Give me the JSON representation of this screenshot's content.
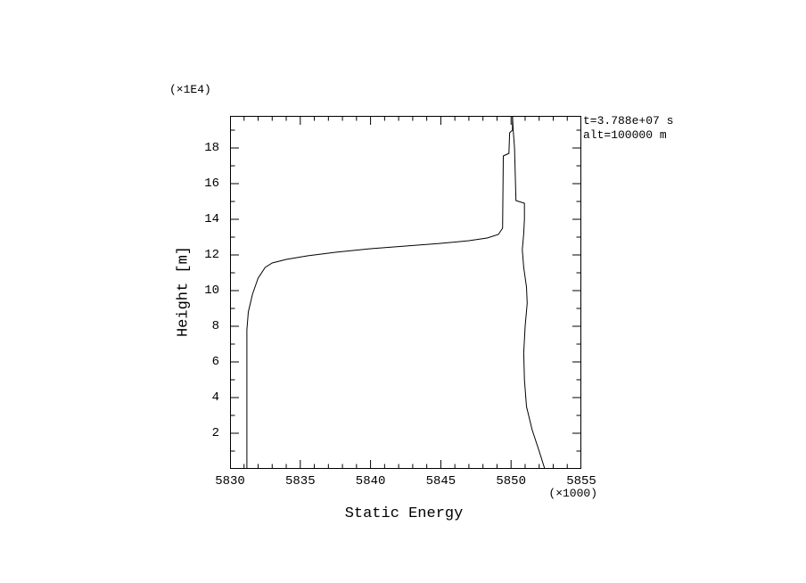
{
  "page": {
    "background": "#ffffff",
    "foreground": "#000000"
  },
  "chart_data": {
    "type": "line",
    "title": "",
    "xlabel": "Static Energy",
    "ylabel": "Height [m]",
    "x_scale_label": "(×1000)",
    "y_scale_label": "(×1E4)",
    "xlim": [
      5830,
      5855
    ],
    "ylim": [
      0,
      19.8
    ],
    "x_major_ticks": [
      5830,
      5835,
      5840,
      5845,
      5850,
      5855
    ],
    "x_minor_step": 1,
    "y_major_ticks": [
      2,
      4,
      6,
      8,
      10,
      12,
      14,
      16,
      18
    ],
    "y_minor_step": 1,
    "grid": false,
    "legend": "none",
    "line_color": "#000000",
    "annotations": [
      "t=3.788e+07 s",
      "alt=100000 m"
    ],
    "series": [
      {
        "name": "profile-left",
        "points": [
          [
            5831.2,
            0.0
          ],
          [
            5831.2,
            7.8
          ],
          [
            5831.3,
            8.8
          ],
          [
            5831.6,
            9.8
          ],
          [
            5832.0,
            10.7
          ],
          [
            5832.5,
            11.3
          ],
          [
            5833.0,
            11.55
          ],
          [
            5834.0,
            11.75
          ],
          [
            5835.5,
            11.95
          ],
          [
            5837.5,
            12.15
          ],
          [
            5840.0,
            12.35
          ],
          [
            5842.5,
            12.5
          ],
          [
            5845.0,
            12.65
          ],
          [
            5847.0,
            12.8
          ],
          [
            5848.3,
            12.95
          ],
          [
            5849.1,
            13.15
          ],
          [
            5849.4,
            13.5
          ],
          [
            5849.45,
            17.55
          ],
          [
            5849.85,
            17.7
          ],
          [
            5849.9,
            18.85
          ],
          [
            5850.1,
            19.0
          ],
          [
            5850.1,
            19.8
          ]
        ]
      },
      {
        "name": "profile-right",
        "points": [
          [
            5852.4,
            0.0
          ],
          [
            5852.0,
            1.0
          ],
          [
            5851.5,
            2.2
          ],
          [
            5851.1,
            3.5
          ],
          [
            5850.95,
            5.0
          ],
          [
            5850.9,
            6.5
          ],
          [
            5851.0,
            8.0
          ],
          [
            5851.15,
            9.3
          ],
          [
            5851.1,
            10.2
          ],
          [
            5850.9,
            11.3
          ],
          [
            5850.8,
            12.3
          ],
          [
            5850.9,
            13.2
          ],
          [
            5850.95,
            14.0
          ],
          [
            5850.95,
            14.9
          ],
          [
            5850.35,
            15.05
          ],
          [
            5850.3,
            16.5
          ],
          [
            5850.25,
            18.0
          ],
          [
            5850.15,
            19.0
          ],
          [
            5850.1,
            19.8
          ]
        ]
      }
    ]
  }
}
